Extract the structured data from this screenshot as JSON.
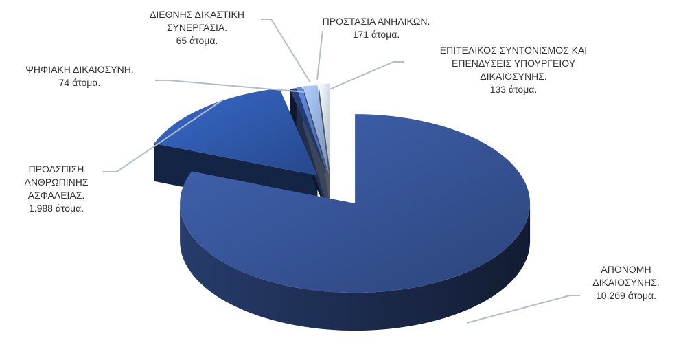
{
  "chart_data": {
    "type": "pie3d",
    "categories": [
      "ΑΠΟΝΟΜΗ ΔΙΚΑΙΟΣΥΝΗΣ.",
      "ΠΡΟΑΣΠΙΣΗ ΑΝΘΡΩΠΙΝΗΣ ΑΣΦΑΛΕΙΑΣ.",
      "ΨΗΦΙΑΚΗ ΔΙΚΑΙΟΣΥΝΗ.",
      "ΔΙΕΘΝΗΣ ΔΙΚΑΣΤΙΚΗ ΣΥΝΕΡΓΑΣΙΑ.",
      "ΠΡΟΣΤΑΣΙΑ ΑΝΗΛΙΚΩΝ.",
      "ΕΠΙΤΕΛΙΚΟΣ ΣΥΝΤΟΝΙΣΜΟΣ ΚΑΙ ΕΠΕΝΔΥΣΕΙΣ ΥΠΟΥΡΓΕΙΟΥ ΔΙΚΑΙΟΣΥΝΗΣ."
    ],
    "values": [
      10269,
      1988,
      74,
      65,
      171,
      133
    ],
    "value_labels": [
      "10.269 άτομα.",
      "1.988 άτομα.",
      "74 άτομα.",
      "65 άτομα.",
      "171 άτομα.",
      "133 άτομα."
    ],
    "colors": [
      "#34508f",
      "#2d55a3",
      "#1f3668",
      "#4f70b8",
      "#8ea7d8",
      "#c8d4ee"
    ]
  }
}
